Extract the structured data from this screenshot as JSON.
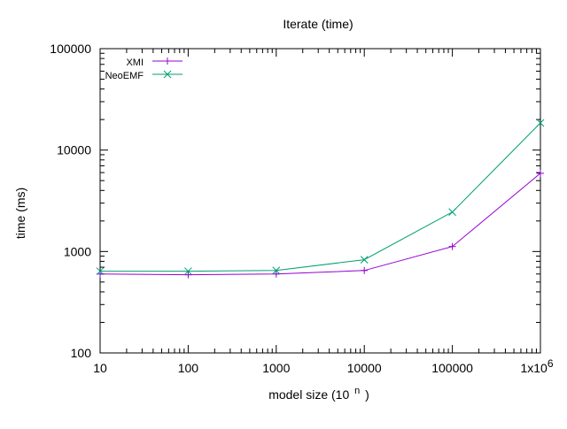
{
  "chart_data": {
    "type": "line",
    "title": "Iterate (time)",
    "xlabel": "model size (10",
    "xlabel_superscript": "n",
    "xlabel_suffix": ")",
    "ylabel": "time (ms)",
    "x_scale": "log",
    "y_scale": "log",
    "xlim": [
      10,
      1000000
    ],
    "ylim": [
      100,
      100000
    ],
    "x_ticks": [
      {
        "value": 10,
        "label": "10"
      },
      {
        "value": 100,
        "label": "100"
      },
      {
        "value": 1000,
        "label": "1000"
      },
      {
        "value": 10000,
        "label": "10000"
      },
      {
        "value": 100000,
        "label": "100000"
      },
      {
        "value": 1000000,
        "label": "1x10",
        "superscript": "6"
      }
    ],
    "y_ticks": [
      {
        "value": 100,
        "label": "100"
      },
      {
        "value": 1000,
        "label": "1000"
      },
      {
        "value": 10000,
        "label": "10000"
      },
      {
        "value": 100000,
        "label": "100000"
      }
    ],
    "grid": false,
    "legend_position": "top-left",
    "x": [
      10,
      100,
      1000,
      10000,
      100000,
      1000000
    ],
    "series": [
      {
        "name": "XMI",
        "color": "#9400d3",
        "marker": "plus",
        "values": [
          600,
          590,
          600,
          650,
          1120,
          5900
        ]
      },
      {
        "name": "NeoEMF",
        "color": "#009e73",
        "marker": "cross",
        "values": [
          640,
          640,
          650,
          830,
          2450,
          18500
        ]
      }
    ]
  }
}
